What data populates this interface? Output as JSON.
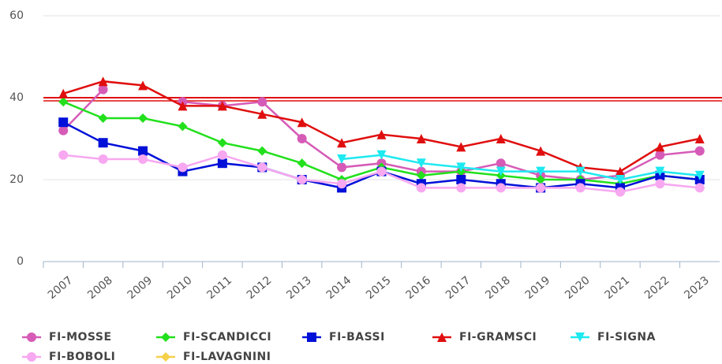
{
  "chart_data": {
    "type": "line",
    "categories": [
      "2007",
      "2008",
      "2009",
      "2010",
      "2011",
      "2012",
      "2013",
      "2014",
      "2015",
      "2016",
      "2017",
      "2018",
      "2019",
      "2020",
      "2021",
      "2022",
      "2023"
    ],
    "ylim": [
      0,
      60
    ],
    "yticks": [
      0,
      20,
      40,
      60
    ],
    "grid": true,
    "reference_line": {
      "value": 40,
      "color": "#e00e0e"
    },
    "series": [
      {
        "name": "FI-MOSSE",
        "color": "#d65bb7",
        "marker": "circle",
        "values": [
          32,
          42,
          null,
          39,
          38,
          39,
          30,
          23,
          24,
          22,
          22,
          24,
          21,
          20,
          21,
          26,
          27
        ]
      },
      {
        "name": "FI-SCANDICCI",
        "color": "#22e01c",
        "marker": "diamond",
        "values": [
          39,
          35,
          35,
          33,
          29,
          27,
          24,
          20,
          23,
          21,
          22,
          21,
          20,
          20,
          19,
          21,
          20
        ]
      },
      {
        "name": "FI-BASSI",
        "color": "#0010d8",
        "marker": "square",
        "values": [
          34,
          29,
          27,
          22,
          24,
          23,
          20,
          18,
          22,
          19,
          20,
          19,
          18,
          19,
          18,
          21,
          20
        ]
      },
      {
        "name": "FI-GRAMSCI",
        "color": "#e00e0e",
        "marker": "triangle",
        "values": [
          41,
          44,
          43,
          38,
          38,
          36,
          34,
          29,
          31,
          30,
          28,
          30,
          27,
          23,
          22,
          28,
          30
        ]
      },
      {
        "name": "FI-SIGNA",
        "color": "#1de9f0",
        "marker": "triangle-down",
        "values": [
          null,
          null,
          null,
          null,
          null,
          null,
          null,
          25,
          26,
          24,
          23,
          22,
          22,
          22,
          20,
          22,
          21
        ]
      },
      {
        "name": "FI-BOBOLI",
        "color": "#f7a8f0",
        "marker": "circle",
        "values": [
          26,
          25,
          25,
          23,
          26,
          23,
          20,
          19,
          22,
          18,
          18,
          18,
          18,
          18,
          17,
          19,
          18
        ]
      },
      {
        "name": "FI-LAVAGNINI",
        "color": "#f5d04a",
        "marker": "diamond",
        "values": [
          null,
          null,
          null,
          null,
          null,
          null,
          null,
          null,
          null,
          null,
          null,
          null,
          null,
          null,
          null,
          null,
          null
        ]
      }
    ]
  }
}
